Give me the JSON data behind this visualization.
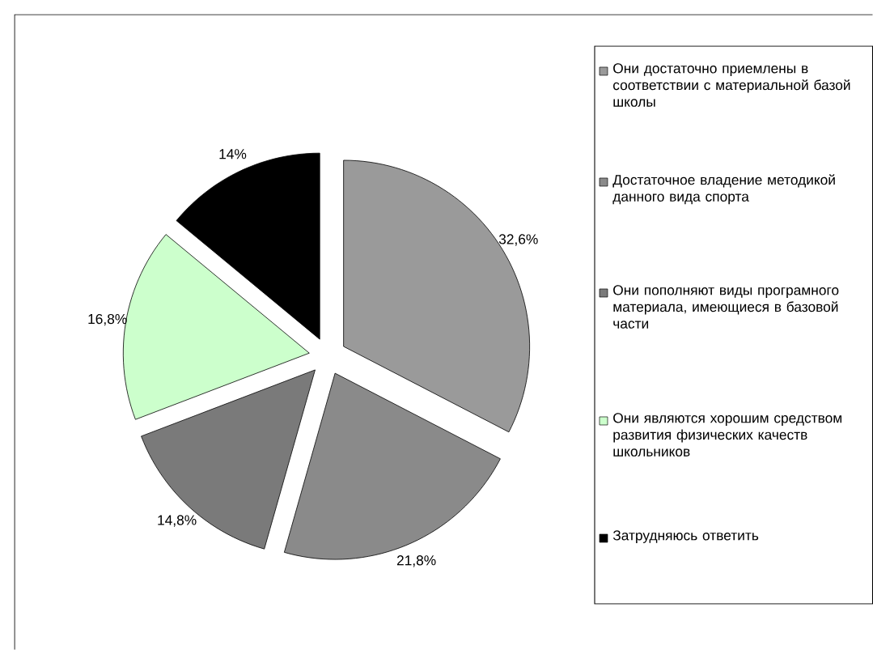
{
  "chart_data": {
    "type": "pie",
    "categories": [
      "Они достаточно приемлены в соответствии с материальной базой школы",
      "Достаточное владение методикой данного вида спорта",
      "Они пополняют виды програмного материала, имеющиеся в базовой части",
      "Они являются хорошим средством  развития физических качеств школьников",
      "Затрудняюсь ответить"
    ],
    "values": [
      32.6,
      21.8,
      14.8,
      16.8,
      14
    ],
    "value_labels": [
      "32,6%",
      "21,8%",
      "14,8%",
      "16,8%",
      "14%"
    ],
    "colors": [
      "#9a9a9a",
      "#8a8a8a",
      "#7a7a7a",
      "#ccffcc",
      "#000000"
    ],
    "legend": "right"
  }
}
